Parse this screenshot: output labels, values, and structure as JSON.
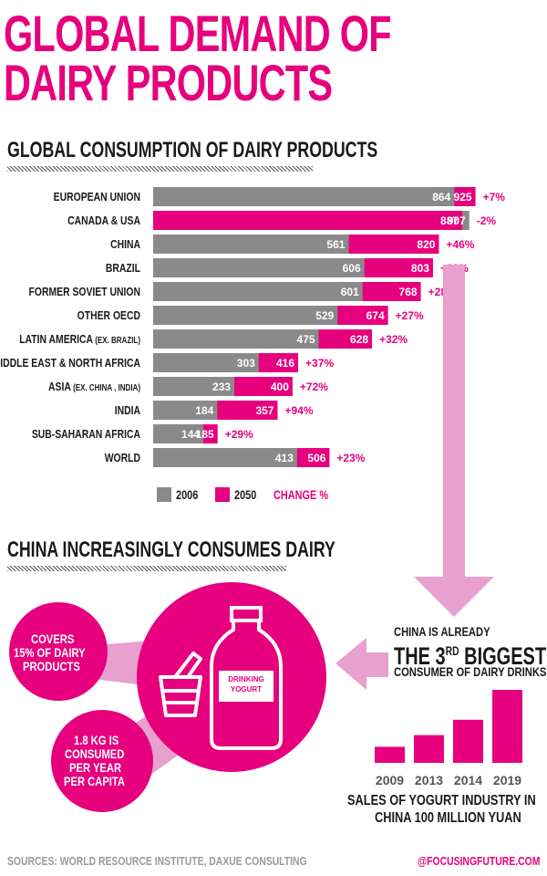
{
  "title_line1": "GLOBAL DEMAND OF",
  "title_line2": "DAIRY PRODUCTS",
  "section1_title": "GLOBAL CONSUMPTION OF DAIRY PRODUCTS",
  "section2_title": "CHINA INCREASINGLY CONSUMES DAIRY",
  "colors": {
    "accent": "#e6007e",
    "gray": "#8a8a8a",
    "light_pink": "#e8a0cf",
    "dark": "#1a1a1a"
  },
  "legend": {
    "item_2006": "2006",
    "item_2050": "2050",
    "change": "CHANGE %"
  },
  "chart_data": {
    "type": "bar",
    "orientation": "horizontal",
    "xlim": [
      0,
      1000
    ],
    "series": [
      {
        "name": "2006",
        "color": "#8a8a8a"
      },
      {
        "name": "2050",
        "color": "#e6007e"
      }
    ],
    "rows": [
      {
        "label": "EUROPEAN UNION",
        "sub": "",
        "v2006": 864,
        "v2050": 925,
        "change": "+7%"
      },
      {
        "label": "CANADA & USA",
        "sub": "",
        "v2006": 907,
        "v2050": 887,
        "change": "-2%"
      },
      {
        "label": "CHINA",
        "sub": "",
        "v2006": 561,
        "v2050": 820,
        "change": "+46%"
      },
      {
        "label": "BRAZIL",
        "sub": "",
        "v2006": 606,
        "v2050": 803,
        "change": "+33%"
      },
      {
        "label": "FORMER SOVIET UNION",
        "sub": "",
        "v2006": 601,
        "v2050": 768,
        "change": "+28%"
      },
      {
        "label": "OTHER OECD",
        "sub": "",
        "v2006": 529,
        "v2050": 674,
        "change": "+27%"
      },
      {
        "label": "LATIN AMERICA",
        "sub": "(EX. BRAZIL)",
        "v2006": 475,
        "v2050": 628,
        "change": "+32%"
      },
      {
        "label": "MIDDLE EAST & NORTH AFRICA",
        "sub": "",
        "v2006": 303,
        "v2050": 416,
        "change": "+37%"
      },
      {
        "label": "ASIA",
        "sub": "(EX. CHINA , INDIA)",
        "v2006": 233,
        "v2050": 400,
        "change": "+72%"
      },
      {
        "label": "INDIA",
        "sub": "",
        "v2006": 184,
        "v2050": 357,
        "change": "+94%"
      },
      {
        "label": "SUB-SAHARAN AFRICA",
        "sub": "",
        "v2006": 144,
        "v2050": 185,
        "change": "+29%"
      },
      {
        "label": "WORLD",
        "sub": "",
        "v2006": 413,
        "v2050": 506,
        "change": "+23%"
      }
    ]
  },
  "china": {
    "covers": [
      "COVERS",
      "15% OF DAIRY",
      "PRODUCTS"
    ],
    "consumed": [
      "1.8 KG IS",
      "CONSUMED",
      "PER YEAR",
      "PER CAPITA"
    ],
    "bottle_label": [
      "DRINKING",
      "YOGURT"
    ],
    "fact_line1": "CHINA IS ALREADY",
    "fact_big_pre": "THE 3",
    "fact_big_sup": "RD",
    "fact_big_post": " BIGGEST",
    "fact_line3": "CONSUMER OF DAIRY DRINKS."
  },
  "yogurt_chart": {
    "type": "bar",
    "categories": [
      "2009",
      "2013",
      "2014",
      "2019"
    ],
    "relative_heights": [
      0.22,
      0.38,
      0.59,
      1.0
    ],
    "caption_line1": "SALES OF YOGURT INDUSTRY IN",
    "caption_line2": "CHINA 100 MILLION YUAN"
  },
  "footer": {
    "sources": "SOURCES: WORLD RESOURCE INSTITUTE, DAXUE CONSULTING",
    "handle": "@FOCUSINGFUTURE.COM"
  }
}
